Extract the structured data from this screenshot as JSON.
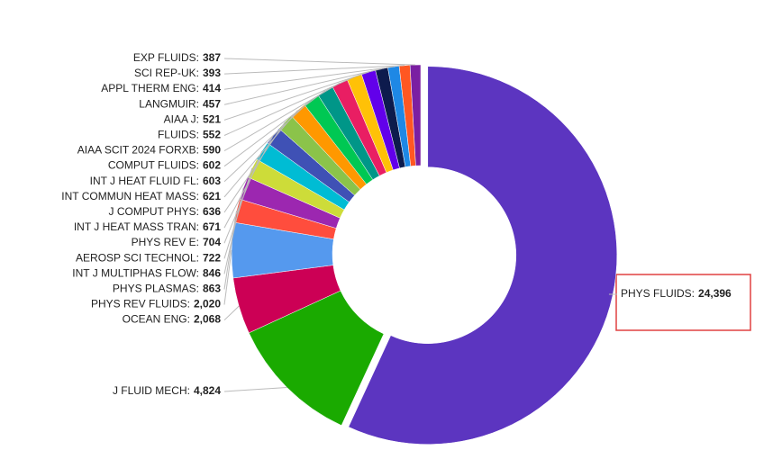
{
  "chart_data": {
    "type": "pie",
    "donut": true,
    "explode_index": 0,
    "categories": [
      "PHYS FLUIDS:",
      "J FLUID MECH:",
      "OCEAN ENG:",
      "PHYS REV FLUIDS:",
      "PHYS PLASMAS:",
      "INT J MULTIPHAS FLOW:",
      "AEROSP SCI TECHNOL:",
      "PHYS REV E:",
      "INT J HEAT MASS TRAN:",
      "J COMPUT PHYS:",
      "INT COMMUN HEAT MASS:",
      "INT J HEAT FLUID FL:",
      "COMPUT FLUIDS:",
      "AIAA SCIT 2024 FORXB:",
      "FLUIDS:",
      "AIAA J:",
      "LANGMUIR:",
      "APPL THERM ENG:",
      "SCI REP-UK:",
      "EXP FLUIDS:"
    ],
    "values": [
      24396,
      4824,
      2068,
      2020,
      863,
      846,
      722,
      704,
      671,
      636,
      621,
      603,
      602,
      590,
      552,
      521,
      457,
      414,
      393,
      387
    ],
    "value_labels": [
      "24,396",
      "4,824",
      "2,068",
      "2,020",
      "863",
      "846",
      "722",
      "704",
      "671",
      "636",
      "621",
      "603",
      "602",
      "590",
      "552",
      "521",
      "457",
      "414",
      "393",
      "387"
    ],
    "colors": [
      "#5c35c0",
      "#1aaa00",
      "#cc0055",
      "#5599ee",
      "#ff4d3d",
      "#9c27b0",
      "#cddc39",
      "#00bcd4",
      "#3f51b5",
      "#8bc34a",
      "#ff9800",
      "#00c853",
      "#009688",
      "#e91e63",
      "#ffc107",
      "#6200ea",
      "#0d1b4d",
      "#1e88e5",
      "#ff5722",
      "#7b1fa2"
    ]
  }
}
